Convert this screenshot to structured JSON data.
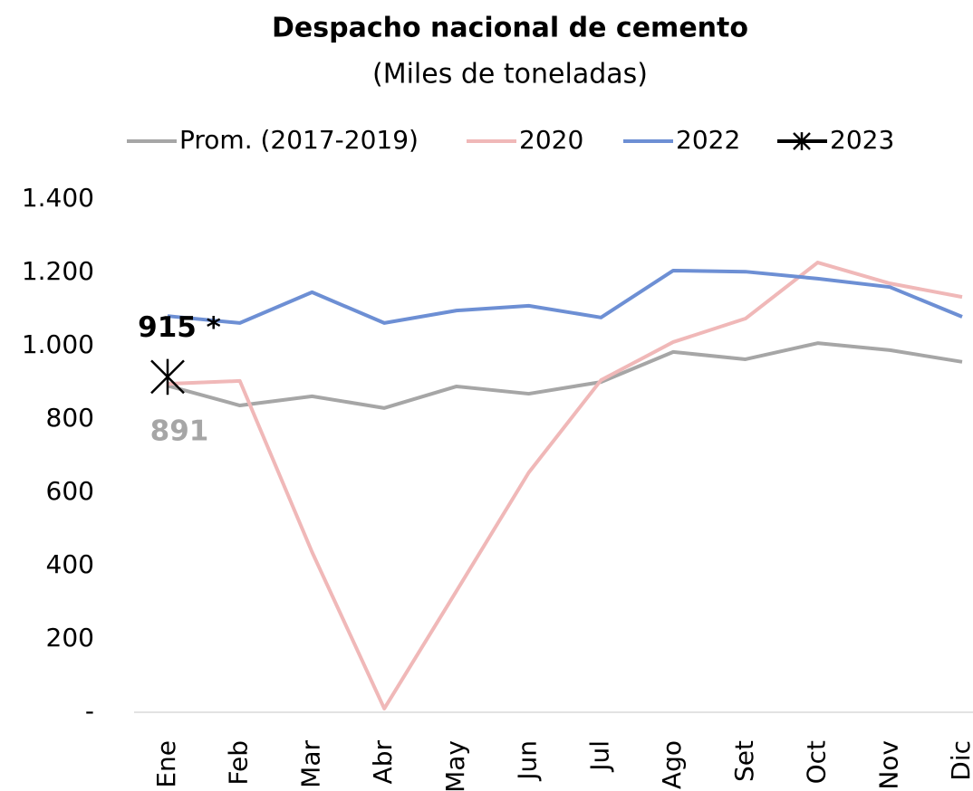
{
  "chart_data": {
    "type": "line",
    "title": "Despacho nacional de cemento",
    "subtitle": "(Miles de toneladas)",
    "categories": [
      "Ene",
      "Feb",
      "Mar",
      "Abr",
      "May",
      "Jun",
      "Jul",
      "Ago",
      "Set",
      "Oct",
      "Nov",
      "Dic"
    ],
    "series": [
      {
        "name": "Prom. (2017-2019)",
        "color": "#a6a6a6",
        "values": [
          891,
          837,
          862,
          830,
          889,
          869,
          901,
          983,
          963,
          1007,
          988,
          956
        ],
        "value_labels": [
          "891",
          null,
          null,
          null,
          null,
          null,
          null,
          null,
          null,
          null,
          null,
          null
        ]
      },
      {
        "name": "2020",
        "color": "#f0b8b8",
        "values": [
          896,
          904,
          437,
          10,
          331,
          654,
          906,
          1010,
          1074,
          1227,
          1170,
          1133
        ]
      },
      {
        "name": "2022",
        "color": "#6d8fd4",
        "values": [
          1081,
          1062,
          1146,
          1062,
          1096,
          1109,
          1077,
          1205,
          1202,
          1183,
          1160,
          1079
        ]
      },
      {
        "name": "2023",
        "color": "#000000",
        "marker": "asterisk",
        "values": [
          915,
          null,
          null,
          null,
          null,
          null,
          null,
          null,
          null,
          null,
          null,
          null
        ],
        "value_labels": [
          "915 *",
          null,
          null,
          null,
          null,
          null,
          null,
          null,
          null,
          null,
          null,
          null
        ]
      }
    ],
    "ylim": [
      0,
      1400
    ],
    "yticks": [
      {
        "value": 0,
        "label": "-"
      },
      200,
      400,
      600,
      800,
      {
        "value": 1000,
        "label": "1.000"
      },
      {
        "value": 1200,
        "label": "1.200"
      },
      {
        "value": 1400,
        "label": "1.400"
      }
    ],
    "legend": "top"
  }
}
